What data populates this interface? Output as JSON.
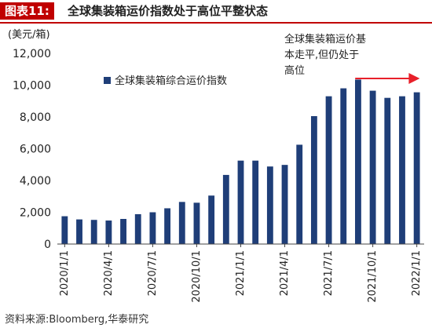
{
  "figure_label": "图表11:",
  "figure_title": "全球集装箱运价指数处于高位平整状态",
  "source": "资料来源:Bloomberg,华泰研究",
  "colors": {
    "bar": "#1f3e78",
    "accent": "#c00000",
    "arrow": "#e8202a"
  },
  "chart_data": {
    "type": "bar",
    "unit_label": "(美元/箱)",
    "legend_label": "全球集装箱综合运价指数",
    "annotation_lines": [
      "全球集装箱运价基",
      "本走平,但仍处于",
      "高位"
    ],
    "ylim": [
      0,
      12000
    ],
    "yticks": [
      0,
      2000,
      4000,
      6000,
      8000,
      10000,
      12000
    ],
    "ytick_labels": [
      "0",
      "2,000",
      "4,000",
      "6,000",
      "8,000",
      "10,000",
      "12,000"
    ],
    "xtick_labels": [
      "2020/1/1",
      "2020/4/1",
      "2020/7/1",
      "2020/10/1",
      "2021/1/1",
      "2021/4/1",
      "2021/7/1",
      "2021/10/1",
      "2022/1/1"
    ],
    "xtick_positions": [
      0,
      3,
      6,
      9,
      12,
      15,
      18,
      21,
      24
    ],
    "values": [
      1750,
      1550,
      1520,
      1480,
      1580,
      1880,
      2000,
      2250,
      2650,
      2600,
      3050,
      4350,
      5250,
      5250,
      4880,
      4980,
      6250,
      8050,
      9300,
      9800,
      10350,
      9650,
      9200,
      9300,
      9550
    ]
  }
}
